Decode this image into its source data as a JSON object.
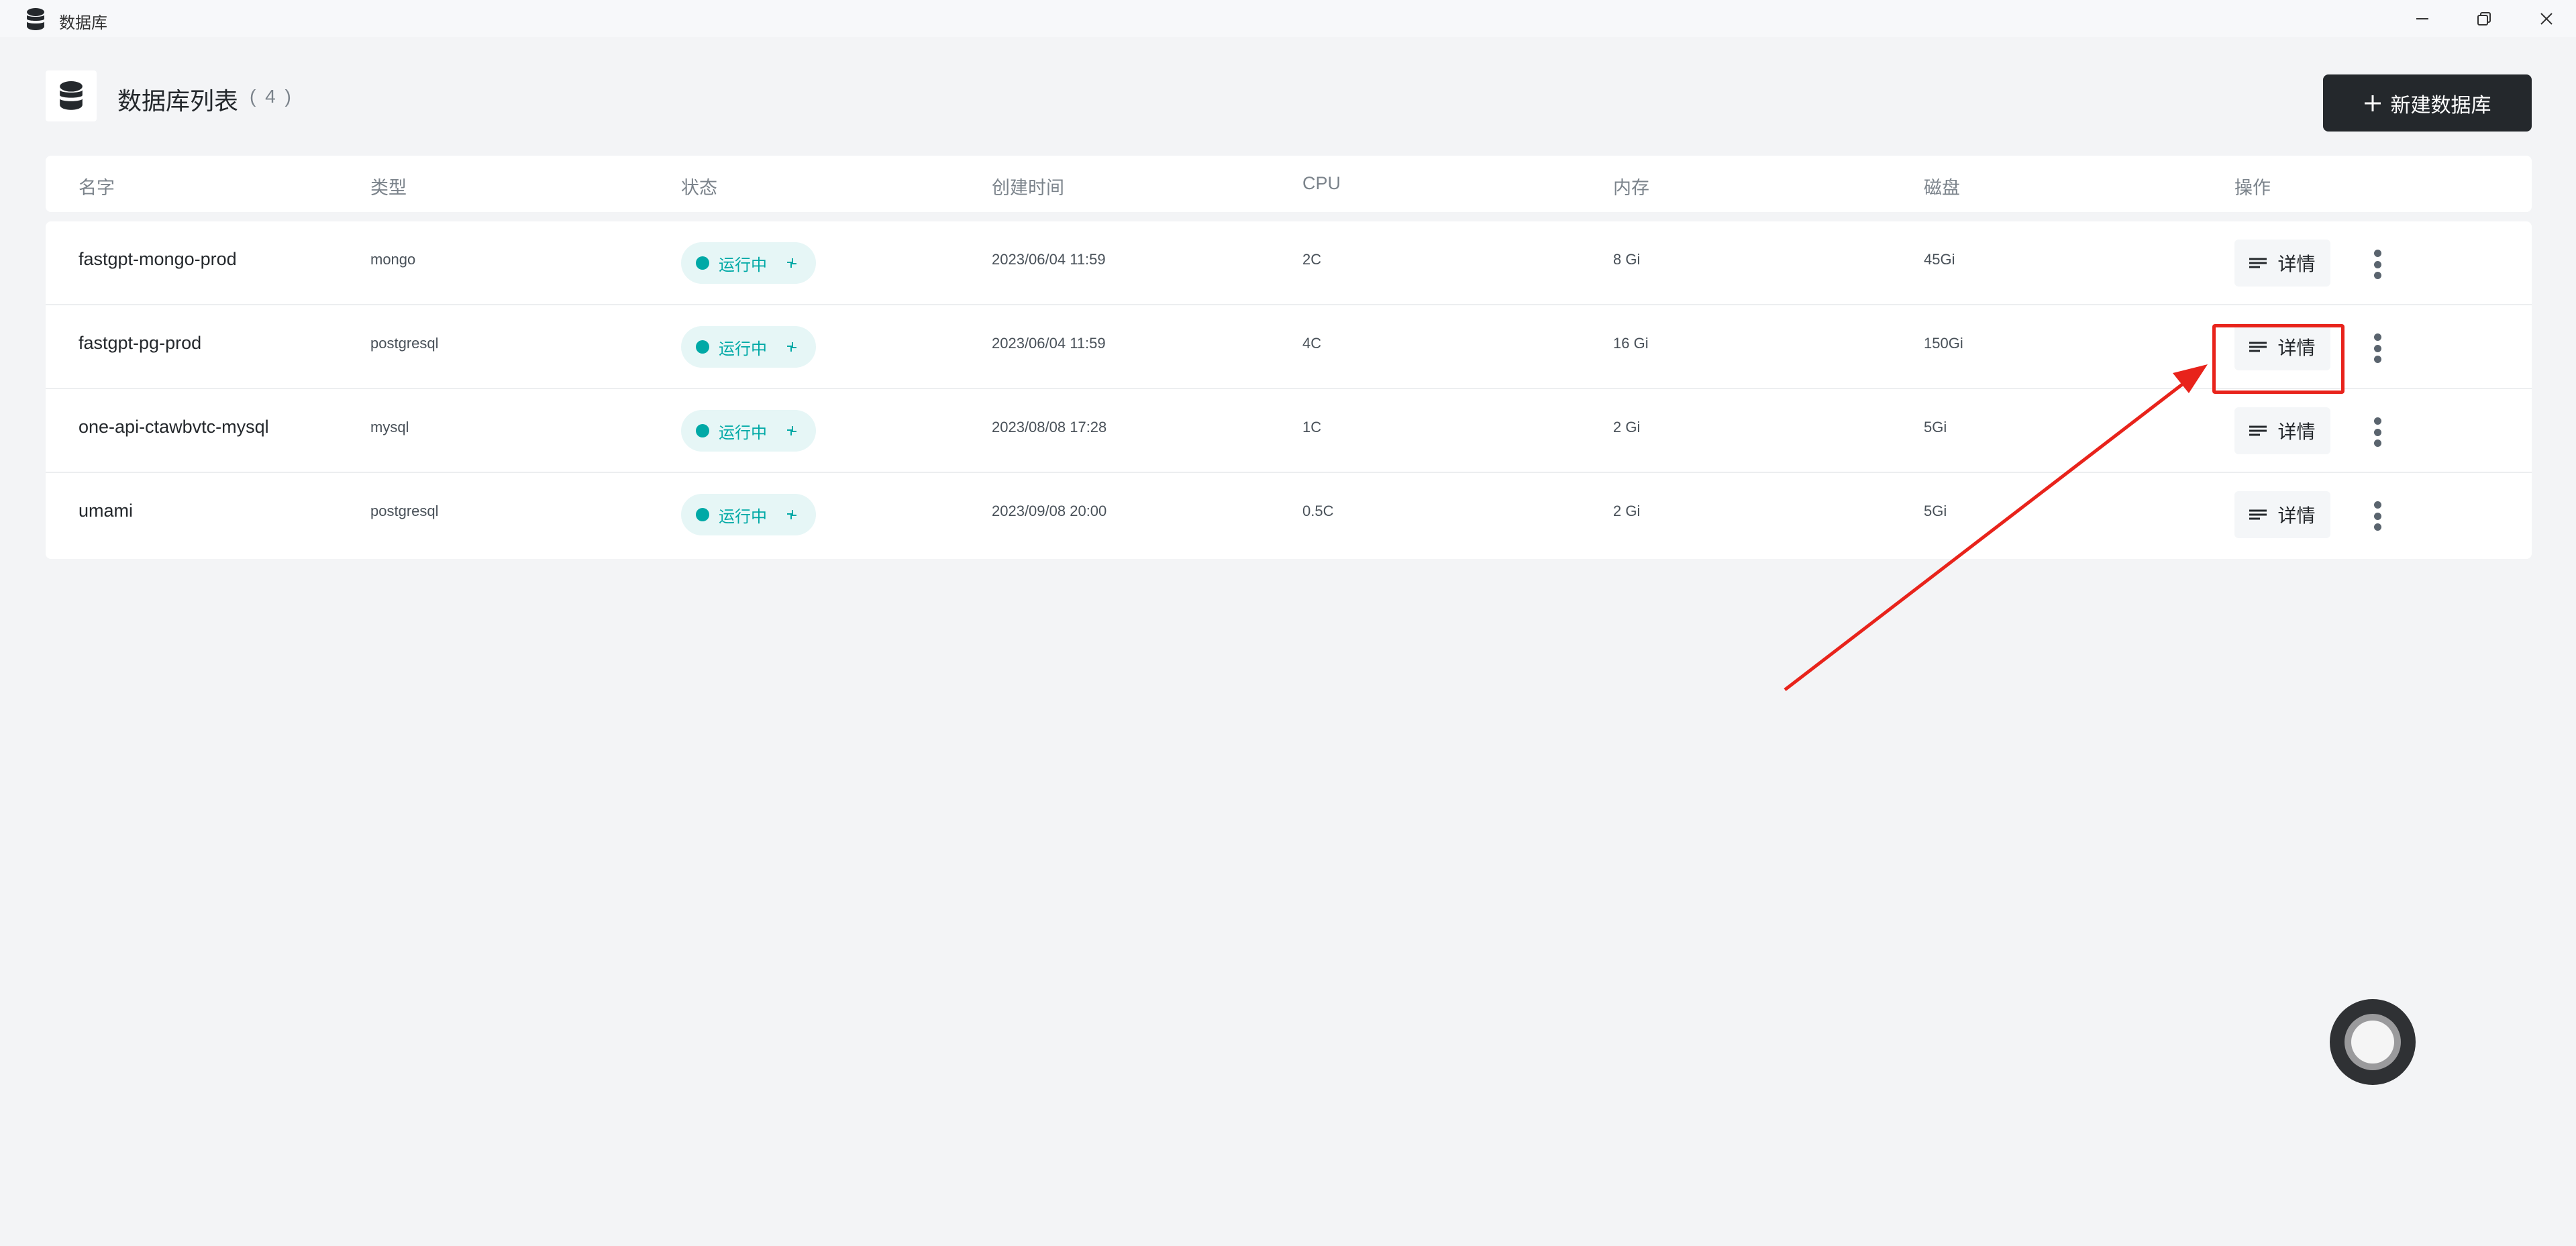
{
  "window": {
    "title": "数据库",
    "icon": "database-icon"
  },
  "header": {
    "title": "数据库列表",
    "count": "( 4 )",
    "new_button_label": "新建数据库"
  },
  "table": {
    "columns": [
      "名字",
      "类型",
      "状态",
      "创建时间",
      "CPU",
      "内存",
      "磁盘",
      "操作"
    ],
    "rows": [
      {
        "name": "fastgpt-mongo-prod",
        "type": "mongo",
        "status": "运行中",
        "created": "2023/06/04 11:59",
        "cpu": "2C",
        "memory": "8 Gi",
        "disk": "45Gi",
        "action": "详情"
      },
      {
        "name": "fastgpt-pg-prod",
        "type": "postgresql",
        "status": "运行中",
        "created": "2023/06/04 11:59",
        "cpu": "4C",
        "memory": "16 Gi",
        "disk": "150Gi",
        "action": "详情"
      },
      {
        "name": "one-api-ctawbvtc-mysql",
        "type": "mysql",
        "status": "运行中",
        "created": "2023/08/08 17:28",
        "cpu": "1C",
        "memory": "2 Gi",
        "disk": "5Gi",
        "action": "详情"
      },
      {
        "name": "umami",
        "type": "postgresql",
        "status": "运行中",
        "created": "2023/09/08 20:00",
        "cpu": "0.5C",
        "memory": "2 Gi",
        "disk": "5Gi",
        "action": "详情"
      }
    ]
  },
  "colors": {
    "accent": "#24282c",
    "running": "#00a9a6",
    "running_bg": "#e6f6f6",
    "annotation": "#e8231b"
  }
}
